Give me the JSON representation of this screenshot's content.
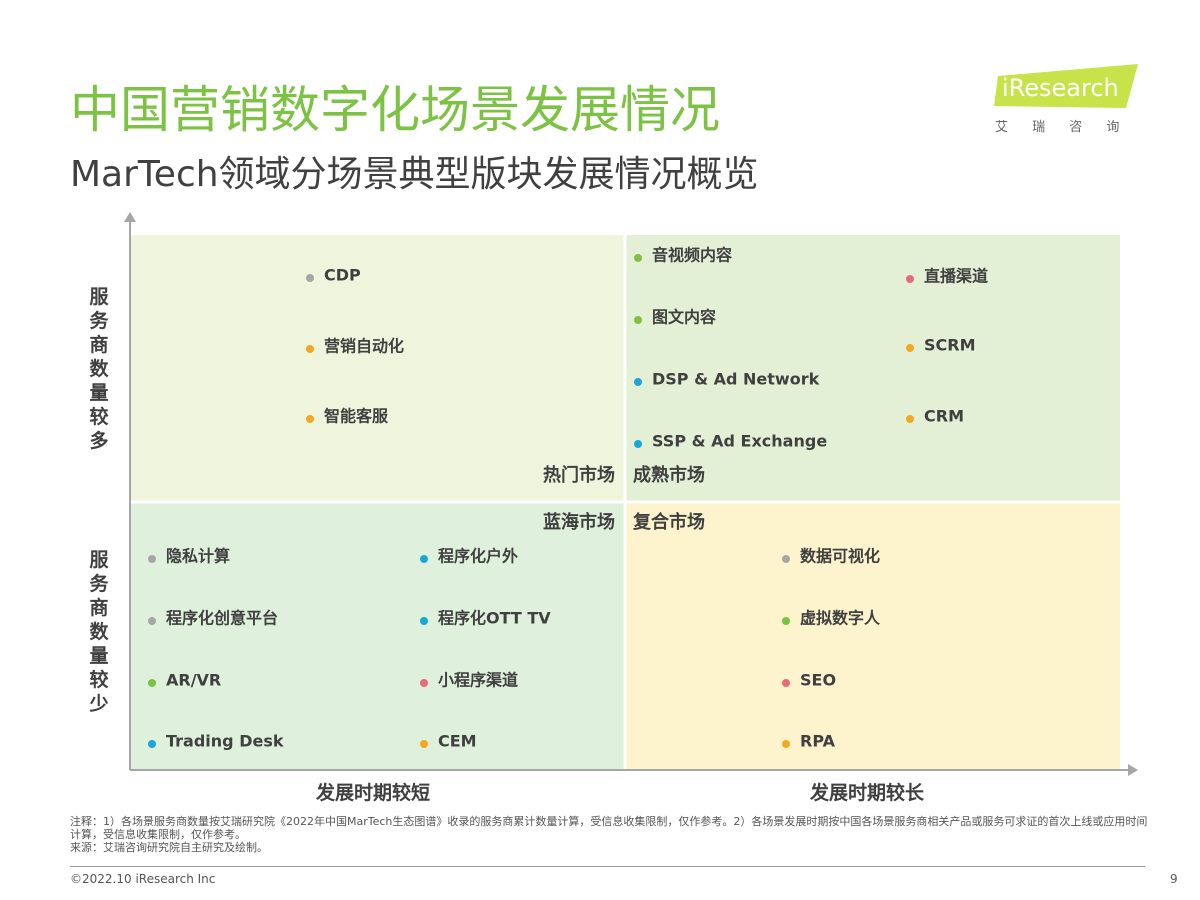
{
  "header": {
    "title": "中国营销数字化场景发展情况",
    "subtitle": "MarTech领域分场景典型版块发展情况概览",
    "logo": "iResearch",
    "logo_sub": "艾 瑞 咨 询"
  },
  "axes": {
    "y_top": "服务商数量较多",
    "y_bottom": "服务商数量较少",
    "x_left": "发展时期较短",
    "x_right": "发展时期较长"
  },
  "quadrants": [
    {
      "label": "热门市场",
      "items": [
        {
          "label": "CDP",
          "color": "#a6a6a6"
        },
        {
          "label": "营销自动化",
          "color": "#f5a623"
        },
        {
          "label": "智能客服",
          "color": "#f5a623"
        }
      ]
    },
    {
      "label": "成熟市场",
      "items": [
        {
          "label": "音视频内容",
          "color": "#7cc243"
        },
        {
          "label": "图文内容",
          "color": "#7cc243"
        },
        {
          "label": "DSP & Ad Network",
          "color": "#1aa6d9"
        },
        {
          "label": "SSP & Ad Exchange",
          "color": "#1aa6d9"
        },
        {
          "label": "直播渠道",
          "color": "#e86b7c"
        },
        {
          "label": "SCRM",
          "color": "#f5a623"
        },
        {
          "label": "CRM",
          "color": "#f5a623"
        }
      ]
    },
    {
      "label": "蓝海市场",
      "items": [
        {
          "label": "隐私计算",
          "color": "#a6a6a6"
        },
        {
          "label": "程序化创意平台",
          "color": "#a6a6a6"
        },
        {
          "label": "AR/VR",
          "color": "#7cc243"
        },
        {
          "label": "Trading Desk",
          "color": "#1aa6d9"
        },
        {
          "label": "程序化户外",
          "color": "#1aa6d9"
        },
        {
          "label": "程序化OTT TV",
          "color": "#1aa6d9"
        },
        {
          "label": "小程序渠道",
          "color": "#e86b7c"
        },
        {
          "label": "CEM",
          "color": "#f5a623"
        }
      ]
    },
    {
      "label": "复合市场",
      "items": [
        {
          "label": "数据可视化",
          "color": "#a6a6a6"
        },
        {
          "label": "虚拟数字人",
          "color": "#7cc243"
        },
        {
          "label": "SEO",
          "color": "#e86b7c"
        },
        {
          "label": "RPA",
          "color": "#f5a623"
        }
      ]
    }
  ],
  "notes": [
    "注释：1）各场景服务商数量按艾瑞研究院《2022年中国MarTech生态图谱》收录的服务商累计数量计算，受信息收集限制，仅作参考。2）各场景发展时期按中国各场景服务商相关产品或服务可求证的首次上线或应用时间计算，受信息收集限制，仅作参考。",
    "来源：艾瑞咨询研究院自主研究及绘制。"
  ],
  "footer": {
    "copyright": "©2022.10 iResearch Inc",
    "page": "9"
  }
}
